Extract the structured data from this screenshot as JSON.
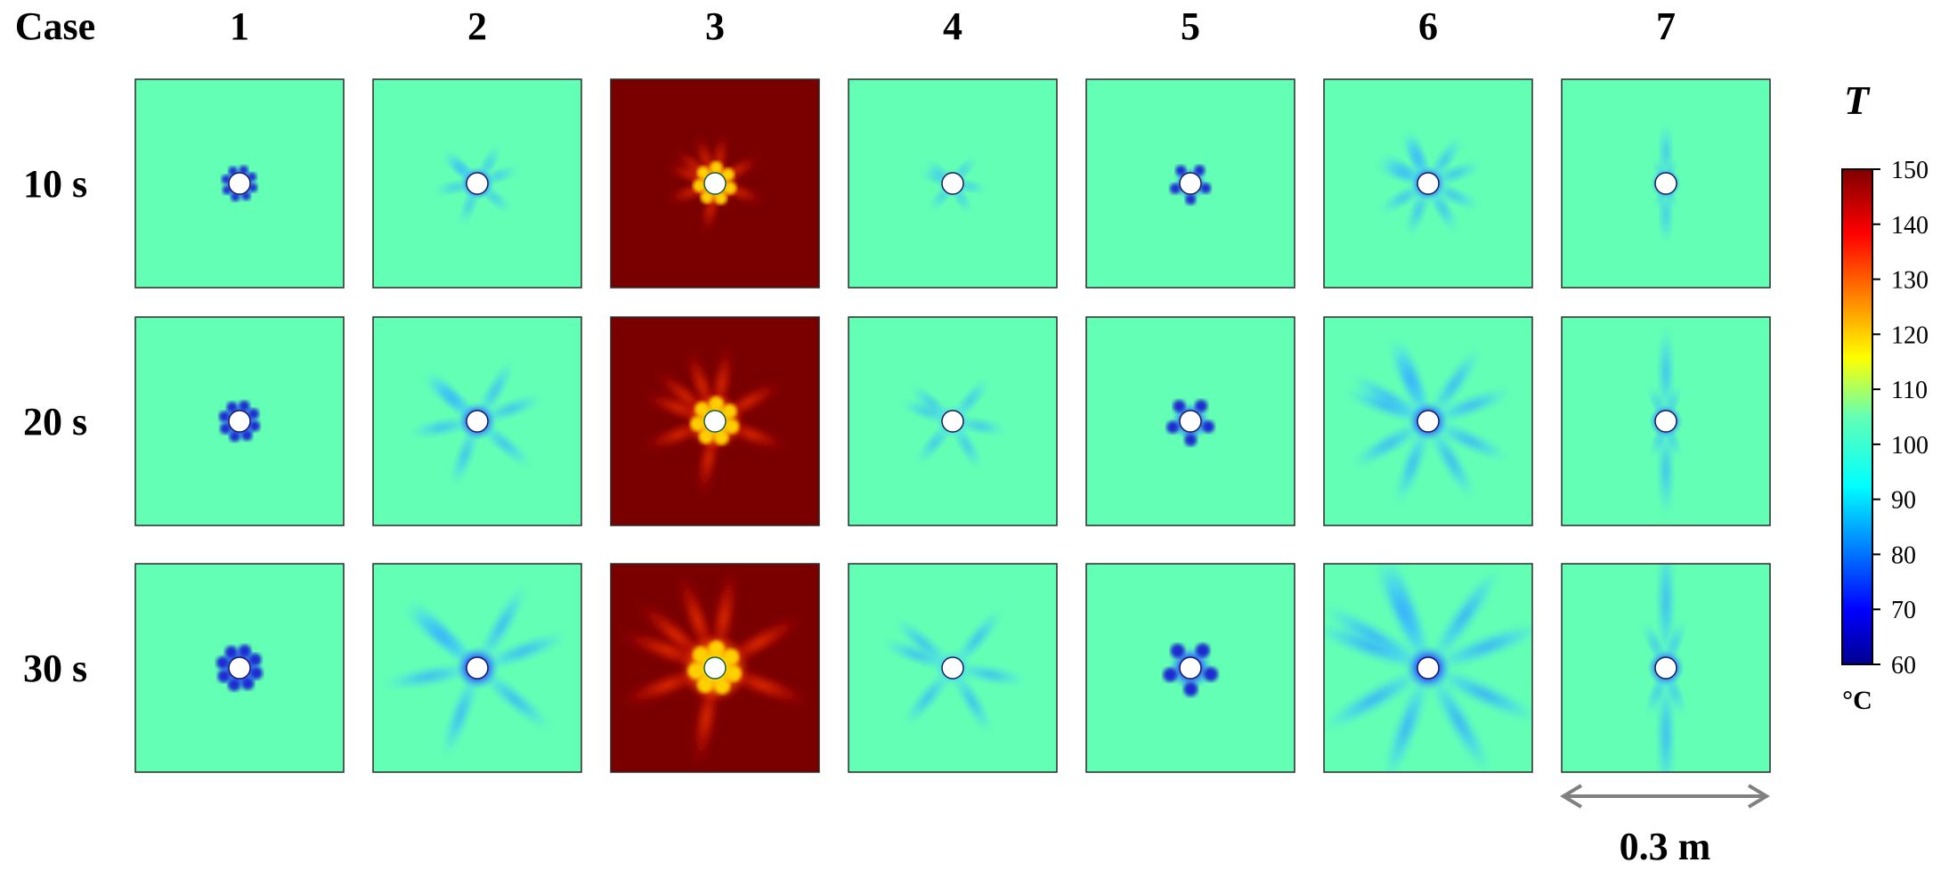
{
  "header": {
    "case_label": "Case"
  },
  "cases": [
    "1",
    "2",
    "3",
    "4",
    "5",
    "6",
    "7"
  ],
  "times": [
    "10 s",
    "20 s",
    "30 s"
  ],
  "colorbar": {
    "symbol": "T",
    "unit": "°C",
    "min": 60,
    "max": 150,
    "ticks": [
      "150",
      "140",
      "130",
      "120",
      "110",
      "100",
      "90",
      "80",
      "70",
      "60"
    ]
  },
  "scale_bar": {
    "label": "0.3 m"
  },
  "colors": {
    "domain_cool": "#63ffb4",
    "domain_hot": "#7a0000",
    "cold_core": "#1c2bd2",
    "plume": "#35b4ff",
    "hole": "#ffffff"
  },
  "panel_styles": [
    {
      "case": "1",
      "style": "compact",
      "hot": false
    },
    {
      "case": "2",
      "style": "rays",
      "hot": false
    },
    {
      "case": "3",
      "style": "hot",
      "hot": true
    },
    {
      "case": "4",
      "style": "light",
      "hot": false
    },
    {
      "case": "5",
      "style": "compact-lobes",
      "hot": false
    },
    {
      "case": "6",
      "style": "wide-rays",
      "hot": false
    },
    {
      "case": "7",
      "style": "vertical",
      "hot": false
    }
  ]
}
